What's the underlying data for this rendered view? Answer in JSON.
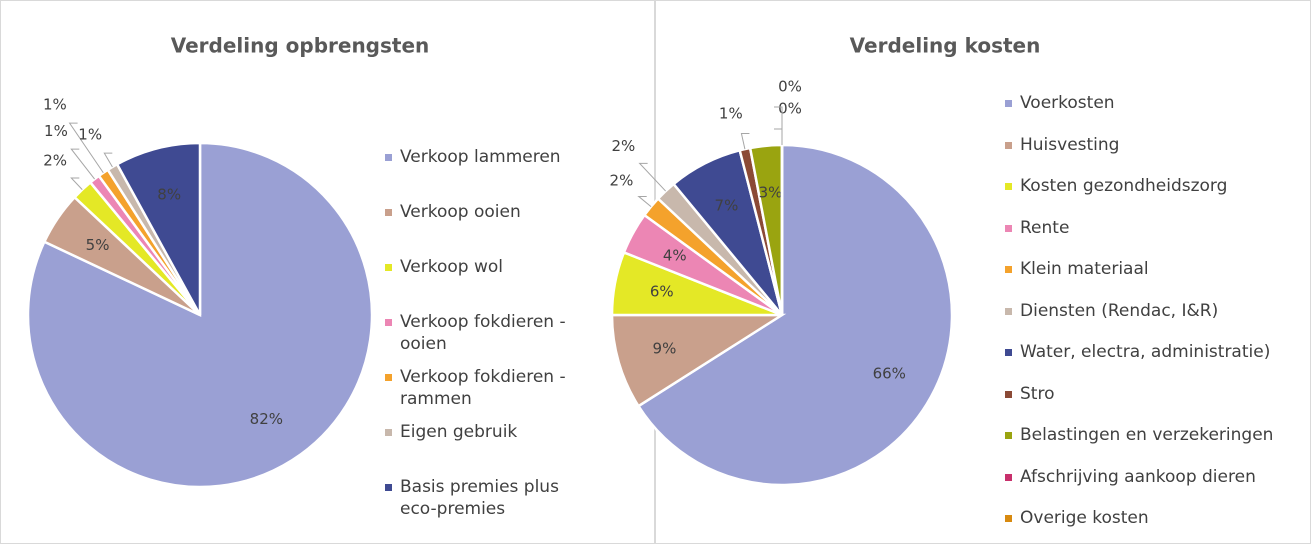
{
  "chart_data": [
    {
      "type": "pie",
      "title": "Verdeling opbrengsten",
      "categories": [
        "Verkoop lammeren",
        "Verkoop ooien",
        "Verkoop wol",
        "Verkoop fokdieren - ooien",
        "Verkoop fokdieren - rammen",
        "Eigen gebruik",
        "Basis premies plus eco-premies"
      ],
      "values": [
        82,
        5,
        2,
        1,
        1,
        1,
        8
      ],
      "value_labels": [
        "82%",
        "5%",
        "2%",
        "1%",
        "1%",
        "1%",
        "8%"
      ],
      "colors": [
        "#9aa0d4",
        "#c9a08c",
        "#e4e826",
        "#ec86b4",
        "#f4a22c",
        "#c8b8ac",
        "#3f4a92"
      ]
    },
    {
      "type": "pie",
      "title": "Verdeling kosten",
      "categories": [
        "Voerkosten",
        "Huisvesting",
        "Kosten gezondheidszorg",
        "Rente",
        "Klein materiaal",
        "Diensten (Rendac, I&R)",
        "Water, electra, administratie)",
        "Stro",
        "Belastingen en verzekeringen",
        "Afschrijving aankoop dieren",
        "Overige kosten"
      ],
      "values": [
        66,
        9,
        6,
        4,
        2,
        2,
        7,
        1,
        3,
        0,
        0
      ],
      "value_labels": [
        "66%",
        "9%",
        "6%",
        "4%",
        "2%",
        "2%",
        "7%",
        "1%",
        "3%",
        "0%",
        "0%"
      ],
      "colors": [
        "#9aa0d4",
        "#c9a08c",
        "#e4e826",
        "#ec86b4",
        "#f4a22c",
        "#c8b8ac",
        "#3f4a92",
        "#8b4a36",
        "#9aa410",
        "#c8306c",
        "#d88a10"
      ]
    }
  ]
}
